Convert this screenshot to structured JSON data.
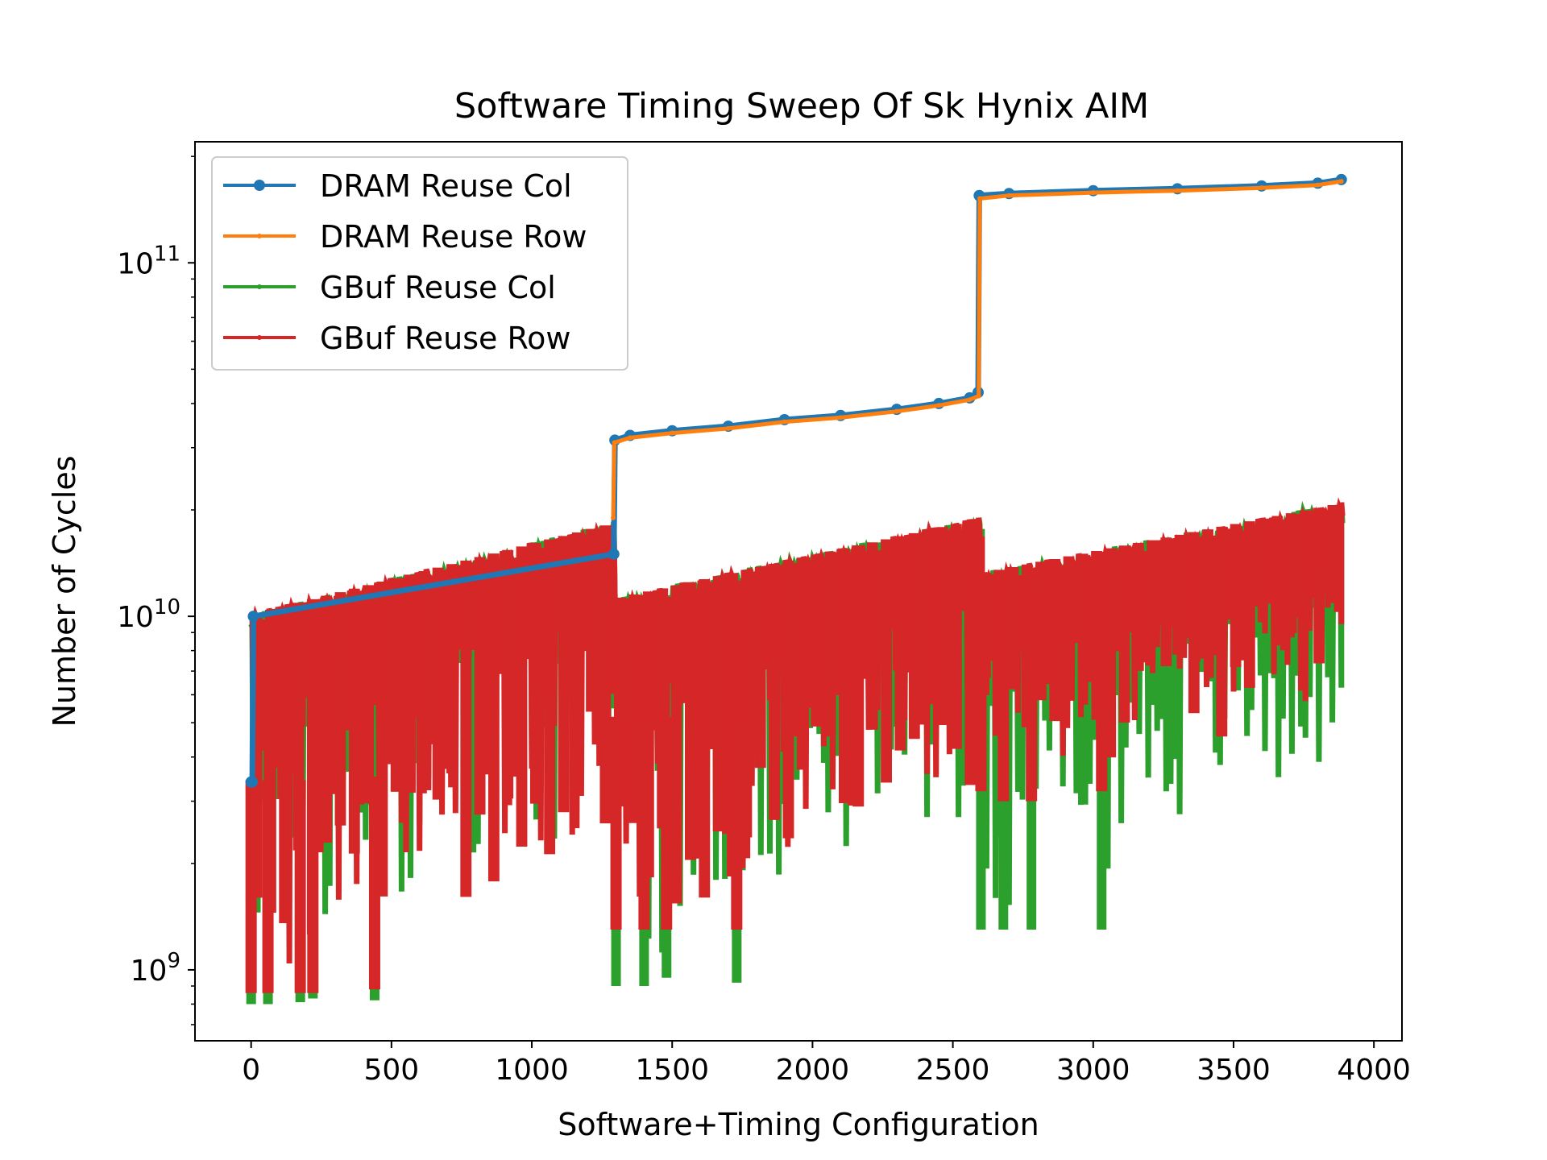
{
  "chart_data": {
    "type": "line",
    "title": "Software Timing Sweep Of Sk Hynix AIM",
    "xlabel": "Software+Timing Configuration",
    "ylabel": "Number of Cycles",
    "yscale": "log",
    "xlim": [
      -200,
      4100
    ],
    "ylim": [
      630000000,
      220000000000
    ],
    "xticks": [
      0,
      500,
      1000,
      1500,
      2000,
      2500,
      3000,
      3500,
      4000
    ],
    "yticks": [
      {
        "value": 1000000000,
        "base": "10",
        "exp": "9"
      },
      {
        "value": 10000000000,
        "base": "10",
        "exp": "10"
      },
      {
        "value": 100000000000,
        "base": "10",
        "exp": "11"
      }
    ],
    "grid": false,
    "legend_position": "upper left",
    "colors": {
      "dram_col": "#1f77b4",
      "dram_row": "#ff7f0e",
      "gbuf_col": "#2ca02c",
      "gbuf_row": "#d62728"
    },
    "series": [
      {
        "name": "DRAM Reuse Col",
        "color": "#1f77b4",
        "marker": "circle",
        "points": [
          [
            0,
            3400000000
          ],
          [
            4,
            3400000000
          ],
          [
            8,
            10000000000
          ],
          [
            1292,
            15000000000
          ],
          [
            1296,
            31500000000
          ],
          [
            1350,
            32500000000
          ],
          [
            1500,
            33500000000
          ],
          [
            1700,
            34500000000
          ],
          [
            1900,
            36000000000
          ],
          [
            2100,
            37000000000
          ],
          [
            2300,
            38500000000
          ],
          [
            2450,
            40000000000
          ],
          [
            2560,
            41500000000
          ],
          [
            2590,
            43000000000
          ],
          [
            2594,
            155000000000
          ],
          [
            2700,
            157000000000
          ],
          [
            3000,
            160000000000
          ],
          [
            3300,
            162000000000
          ],
          [
            3600,
            165000000000
          ],
          [
            3800,
            168000000000
          ],
          [
            3884,
            172000000000
          ]
        ]
      },
      {
        "name": "DRAM Reuse Row",
        "color": "#ff7f0e",
        "marker": "dot",
        "points": [
          [
            1290,
            19000000000
          ],
          [
            1294,
            31000000000
          ],
          [
            1350,
            32000000000
          ],
          [
            1500,
            33000000000
          ],
          [
            1700,
            34000000000
          ],
          [
            1900,
            35500000000
          ],
          [
            2100,
            36500000000
          ],
          [
            2300,
            38000000000
          ],
          [
            2450,
            39500000000
          ],
          [
            2560,
            41000000000
          ],
          [
            2592,
            42000000000
          ],
          [
            2596,
            152000000000
          ],
          [
            2700,
            155000000000
          ],
          [
            3000,
            158000000000
          ],
          [
            3300,
            160000000000
          ],
          [
            3600,
            163000000000
          ],
          [
            3800,
            166000000000
          ],
          [
            3884,
            170000000000
          ]
        ]
      },
      {
        "name": "GBuf Reuse Col",
        "color": "#2ca02c",
        "marker": "dot",
        "segments": [
          {
            "x": [
              0,
              1292
            ],
            "low": [
              800000000,
              2500000000
            ],
            "high": [
              10200000000,
              18500000000
            ]
          },
          {
            "x": [
              1296,
              2592
            ],
            "low": [
              900000000,
              2800000000
            ],
            "high": [
              11300000000,
              19000000000
            ]
          },
          {
            "x": [
              2596,
              3884
            ],
            "low": [
              1300000000,
              3300000000
            ],
            "high": [
              13300000000,
              21000000000
            ]
          }
        ],
        "dips": [
          [
            0,
            800000000
          ],
          [
            60,
            800000000
          ],
          [
            175,
            810000000
          ],
          [
            220,
            830000000
          ],
          [
            440,
            820000000
          ],
          [
            1300,
            900000000
          ],
          [
            1400,
            900000000
          ],
          [
            1480,
            950000000
          ],
          [
            1730,
            920000000
          ],
          [
            2600,
            1300000000
          ],
          [
            2680,
            1300000000
          ],
          [
            2780,
            1300000000
          ],
          [
            3030,
            1300000000
          ]
        ]
      },
      {
        "name": "GBuf Reuse Row",
        "color": "#d62728",
        "marker": "dot",
        "segments": [
          {
            "x": [
              0,
              1292
            ],
            "low": [
              860000000,
              2500000000
            ],
            "high": [
              10200000000,
              18500000000
            ]
          },
          {
            "x": [
              1296,
              2592
            ],
            "low": [
              1300000000,
              3000000000
            ],
            "high": [
              11300000000,
              19000000000
            ]
          },
          {
            "x": [
              2596,
              3884
            ],
            "low": [
              3200000000,
              5500000000
            ],
            "high": [
              13300000000,
              21000000000
            ]
          }
        ],
        "dips": [
          [
            0,
            860000000
          ],
          [
            60,
            860000000
          ],
          [
            175,
            860000000
          ],
          [
            220,
            860000000
          ],
          [
            440,
            880000000
          ],
          [
            1300,
            1300000000
          ],
          [
            1400,
            1300000000
          ],
          [
            1480,
            1300000000
          ],
          [
            1730,
            1300000000
          ],
          [
            2600,
            3200000000
          ],
          [
            2680,
            3000000000
          ],
          [
            2780,
            3000000000
          ],
          [
            3030,
            3200000000
          ]
        ]
      }
    ]
  }
}
